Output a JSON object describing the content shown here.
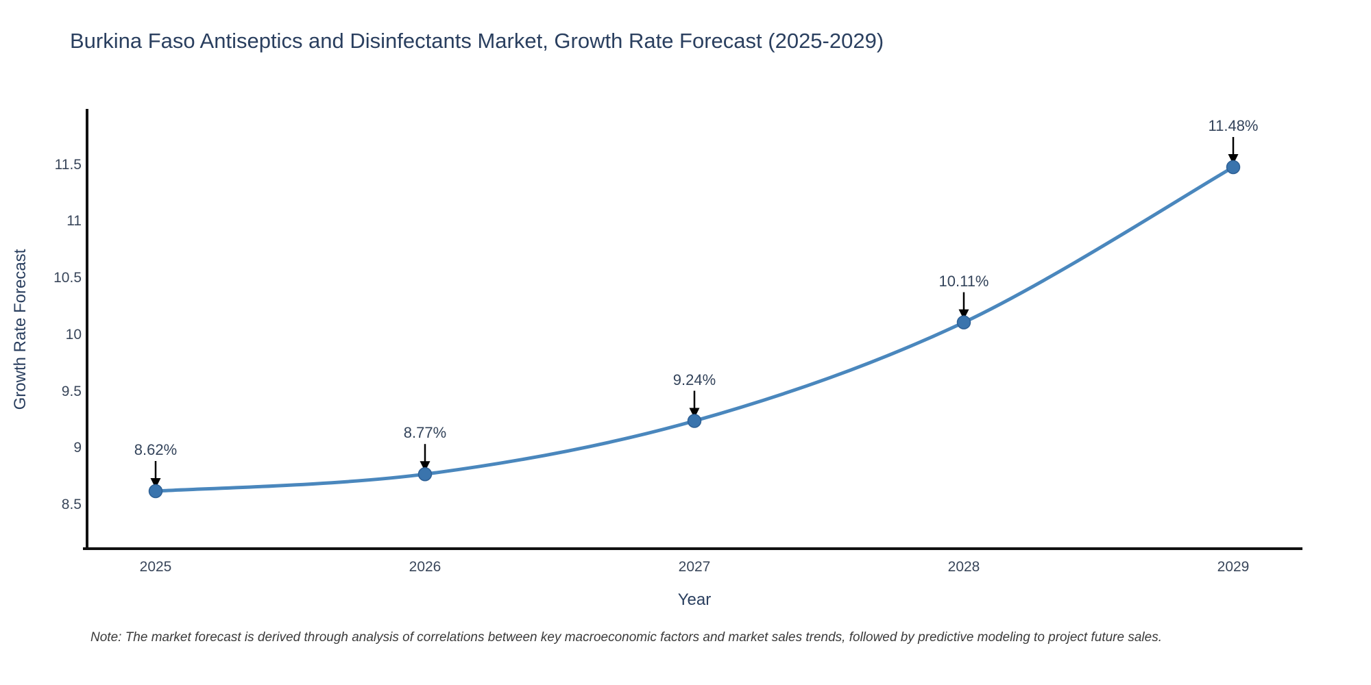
{
  "title": "Burkina Faso Antiseptics and Disinfectants Market, Growth Rate Forecast (2025-2029)",
  "note": "Note: The market forecast is derived through analysis of correlations between key macroeconomic factors and market sales trends, followed by predictive modeling to project future sales.",
  "chart_data": {
    "type": "line",
    "title": "Burkina Faso Antiseptics and Disinfectants Market, Growth Rate Forecast (2025-2029)",
    "xlabel": "Year",
    "ylabel": "Growth Rate Forecast",
    "categories": [
      "2025",
      "2026",
      "2027",
      "2028",
      "2029"
    ],
    "values": [
      8.62,
      8.77,
      9.24,
      10.11,
      11.48
    ],
    "point_labels": [
      "8.62%",
      "8.77%",
      "9.24%",
      "10.11%",
      "11.48%"
    ],
    "yticks": [
      8.5,
      9,
      9.5,
      10,
      10.5,
      11,
      11.5
    ],
    "ylim": [
      8.1,
      11.99
    ],
    "grid": false,
    "legend_position": "none",
    "line_shape": "spline",
    "marker": "circle",
    "annotation_arrows": true,
    "colors": {
      "line": "#4a87bd",
      "marker_fill": "#3a74ad",
      "marker_edge": "#2e6095",
      "arrow": "#000000",
      "axis_line": "#111111",
      "title_text": "#2a3f5f",
      "tick_text": "#39465a",
      "label_text": "#33435a",
      "note_text": "#3a3a3a",
      "background": "#ffffff"
    }
  }
}
